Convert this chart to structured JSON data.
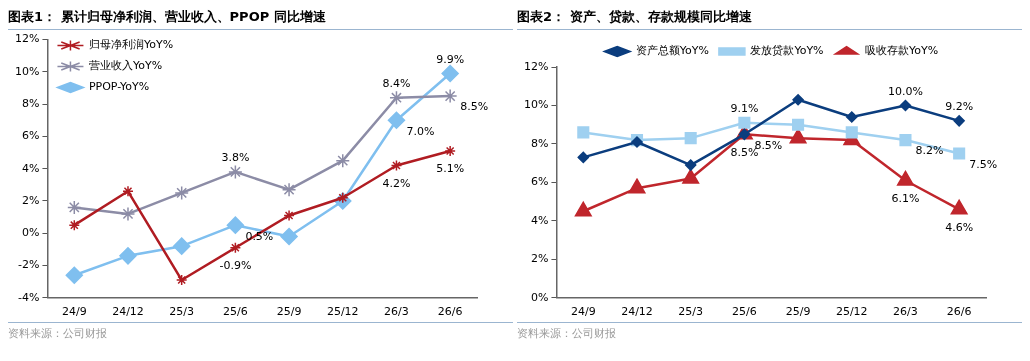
{
  "chart_data": [
    {
      "type": "line",
      "title": "图表1：  累计归母净利润、营业收入、PPOP 同比增速",
      "categories": [
        "24/9",
        "24/12",
        "25/3",
        "25/6",
        "25/9",
        "25/12",
        "26/3",
        "26/6"
      ],
      "series": [
        {
          "name": "归母净利润YoY%",
          "color": "#b01c22",
          "marker": "cross",
          "values": [
            0.5,
            2.6,
            -2.9,
            -0.9,
            1.1,
            2.2,
            4.2,
            5.1
          ],
          "value_labels": [
            null,
            null,
            null,
            "-0.9%",
            null,
            null,
            "4.2%",
            "5.1%"
          ]
        },
        {
          "name": "营业收入YoY%",
          "color": "#8c8ca6",
          "marker": "cross",
          "values": [
            1.6,
            1.2,
            2.5,
            3.8,
            2.7,
            4.5,
            8.4,
            8.5
          ],
          "value_labels": [
            null,
            null,
            null,
            "3.8%",
            null,
            null,
            "8.4%",
            "8.5%"
          ]
        },
        {
          "name": "PPOP-YoY%",
          "color": "#7fbfef",
          "marker": "diamond",
          "values": [
            -2.6,
            -1.4,
            -0.8,
            0.5,
            -0.2,
            2.0,
            7.0,
            9.9
          ],
          "value_labels": [
            null,
            null,
            null,
            "0.5%",
            null,
            null,
            "7.0%",
            "9.9%"
          ]
        }
      ],
      "ylim": [
        -4,
        12
      ],
      "yticks": [
        {
          "value": -4,
          "label": "-4%"
        },
        {
          "value": -2,
          "label": "-2%"
        },
        {
          "value": 0,
          "label": "0%"
        },
        {
          "value": 2,
          "label": "2%"
        },
        {
          "value": 4,
          "label": "4%"
        },
        {
          "value": 6,
          "label": "6%"
        },
        {
          "value": 8,
          "label": "8%"
        },
        {
          "value": 10,
          "label": "10%"
        },
        {
          "value": 12,
          "label": "12%"
        }
      ],
      "grid": false,
      "legend": "top left",
      "annotations": [
        "资料来源：公司财报"
      ]
    },
    {
      "type": "line",
      "title": "图表2：  资产、贷款、存款规模同比增速",
      "categories": [
        "24/9",
        "24/12",
        "25/3",
        "25/6",
        "25/9",
        "25/12",
        "26/3",
        "26/6"
      ],
      "series": [
        {
          "name": "资产总额YoY%",
          "color": "#0b3d7e",
          "marker": "diamond",
          "values": [
            7.3,
            8.1,
            6.9,
            8.5,
            10.3,
            9.4,
            10.0,
            9.2
          ],
          "value_labels": [
            null,
            null,
            null,
            "8.5%",
            null,
            null,
            "10.0%",
            "9.2%"
          ]
        },
        {
          "name": "发放贷款YoY%",
          "color": "#9fd0f0",
          "marker": "square",
          "values": [
            8.6,
            8.2,
            8.3,
            9.1,
            9.0,
            8.6,
            8.2,
            7.5
          ],
          "value_labels": [
            null,
            null,
            null,
            "9.1%",
            null,
            null,
            "8.2%",
            "7.5%"
          ]
        },
        {
          "name": "吸收存款YoY%",
          "color": "#c0262c",
          "marker": "triangle",
          "values": [
            4.5,
            5.7,
            6.2,
            8.5,
            8.3,
            8.2,
            6.1,
            4.6
          ],
          "value_labels": [
            null,
            null,
            null,
            "8.5%",
            null,
            null,
            "6.1%",
            "4.6%"
          ]
        }
      ],
      "ylim": [
        0,
        12
      ],
      "yticks": [
        {
          "value": 0,
          "label": "0%"
        },
        {
          "value": 2,
          "label": "2%"
        },
        {
          "value": 4,
          "label": "4%"
        },
        {
          "value": 6,
          "label": "6%"
        },
        {
          "value": 8,
          "label": "8%"
        },
        {
          "value": 10,
          "label": "10%"
        },
        {
          "value": 12,
          "label": "12%"
        }
      ],
      "grid": false,
      "legend": "top",
      "annotations": [
        "资料来源：公司财报"
      ]
    }
  ]
}
